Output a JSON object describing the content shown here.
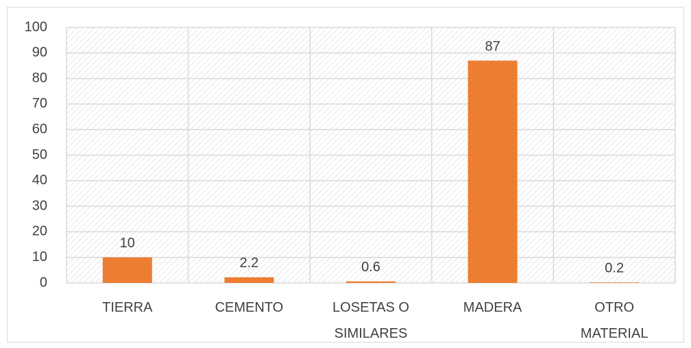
{
  "chart_data": {
    "type": "bar",
    "categories": [
      "TIERRA",
      "CEMENTO",
      "LOSETAS O SIMILARES",
      "MADERA",
      "OTRO MATERIAL"
    ],
    "values": [
      10,
      2.2,
      0.6,
      87,
      0.2
    ],
    "color": "#ed7d31",
    "ylim": [
      0,
      100
    ],
    "yticks": [
      0,
      10,
      20,
      30,
      40,
      50,
      60,
      70,
      80,
      90,
      100
    ],
    "grid": true
  }
}
